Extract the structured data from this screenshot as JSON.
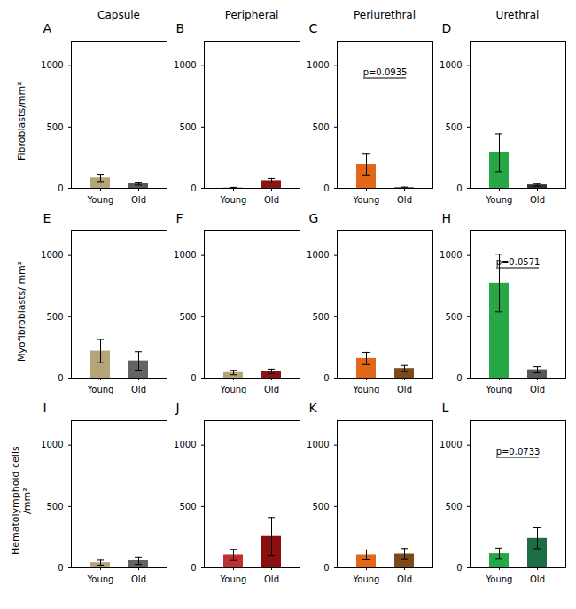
{
  "chart_data": [
    {
      "type": "bar",
      "title": "Capsule",
      "ylabel": "Fibroblasts/mm²",
      "annotations": [
        "A"
      ],
      "categories": [
        "Young",
        "Old"
      ],
      "values": [
        85,
        38
      ],
      "errors": [
        30,
        12
      ],
      "colors": [
        "#b5a478",
        "#595959"
      ],
      "ylim": [
        0,
        1200
      ],
      "yticks": [
        0,
        500,
        1000
      ]
    },
    {
      "type": "bar",
      "title": "Peripheral",
      "annotations": [
        "B"
      ],
      "categories": [
        "Young",
        "Old"
      ],
      "values": [
        4,
        62
      ],
      "errors": [
        4,
        18
      ],
      "colors": [
        "#b5a478",
        "#8b1515"
      ],
      "ylim": [
        0,
        1200
      ],
      "yticks": [
        0,
        500,
        1000
      ]
    },
    {
      "type": "bar",
      "title": "Periurethral",
      "annotations": [
        "C",
        "p=0.0935"
      ],
      "categories": [
        "Young",
        "Old"
      ],
      "values": [
        195,
        6
      ],
      "errors": [
        85,
        4
      ],
      "colors": [
        "#e06818",
        "#595959"
      ],
      "ylim": [
        0,
        1200
      ],
      "yticks": [
        0,
        500,
        1000
      ]
    },
    {
      "type": "bar",
      "title": "Urethral",
      "annotations": [
        "D"
      ],
      "categories": [
        "Young",
        "Old"
      ],
      "values": [
        290,
        28
      ],
      "errors": [
        155,
        10
      ],
      "colors": [
        "#26a846",
        "#333333"
      ],
      "ylim": [
        0,
        1200
      ],
      "yticks": [
        0,
        500,
        1000
      ]
    },
    {
      "type": "bar",
      "ylabel": "Myofibroblasts/ mm²",
      "annotations": [
        "E"
      ],
      "categories": [
        "Young",
        "Old"
      ],
      "values": [
        220,
        140
      ],
      "errors": [
        95,
        75
      ],
      "colors": [
        "#b5a478",
        "#636363"
      ],
      "ylim": [
        0,
        1200
      ],
      "yticks": [
        0,
        500,
        1000
      ]
    },
    {
      "type": "bar",
      "annotations": [
        "F"
      ],
      "categories": [
        "Young",
        "Old"
      ],
      "values": [
        45,
        55
      ],
      "errors": [
        18,
        18
      ],
      "colors": [
        "#b5a478",
        "#8b1515"
      ],
      "ylim": [
        0,
        1200
      ],
      "yticks": [
        0,
        500,
        1000
      ]
    },
    {
      "type": "bar",
      "annotations": [
        "G"
      ],
      "categories": [
        "Young",
        "Old"
      ],
      "values": [
        160,
        78
      ],
      "errors": [
        50,
        25
      ],
      "colors": [
        "#e06818",
        "#7a4a18"
      ],
      "ylim": [
        0,
        1200
      ],
      "yticks": [
        0,
        500,
        1000
      ]
    },
    {
      "type": "bar",
      "annotations": [
        "H",
        "p=0.0571"
      ],
      "categories": [
        "Young",
        "Old"
      ],
      "values": [
        775,
        68
      ],
      "errors": [
        235,
        25
      ],
      "colors": [
        "#26a846",
        "#595959"
      ],
      "ylim": [
        0,
        1200
      ],
      "yticks": [
        0,
        500,
        1000
      ]
    },
    {
      "type": "bar",
      "ylabel": "Hematolymphoid cells\n/mm²",
      "annotations": [
        "I"
      ],
      "categories": [
        "Young",
        "Old"
      ],
      "values": [
        42,
        58
      ],
      "errors": [
        20,
        30
      ],
      "colors": [
        "#b5a478",
        "#636363"
      ],
      "ylim": [
        0,
        1200
      ],
      "yticks": [
        0,
        500,
        1000
      ]
    },
    {
      "type": "bar",
      "annotations": [
        "J"
      ],
      "categories": [
        "Young",
        "Old"
      ],
      "values": [
        105,
        255
      ],
      "errors": [
        45,
        155
      ],
      "colors": [
        "#c03030",
        "#8b0f0f"
      ],
      "ylim": [
        0,
        1200
      ],
      "yticks": [
        0,
        500,
        1000
      ]
    },
    {
      "type": "bar",
      "annotations": [
        "K"
      ],
      "categories": [
        "Young",
        "Old"
      ],
      "values": [
        105,
        112
      ],
      "errors": [
        40,
        45
      ],
      "colors": [
        "#e06818",
        "#7a4a18"
      ],
      "ylim": [
        0,
        1200
      ],
      "yticks": [
        0,
        500,
        1000
      ]
    },
    {
      "type": "bar",
      "annotations": [
        "L",
        "p=0.0733"
      ],
      "categories": [
        "Young",
        "Old"
      ],
      "values": [
        115,
        240
      ],
      "errors": [
        45,
        85
      ],
      "colors": [
        "#26a846",
        "#1e6e45"
      ],
      "ylim": [
        0,
        1200
      ],
      "yticks": [
        0,
        500,
        1000
      ]
    }
  ]
}
